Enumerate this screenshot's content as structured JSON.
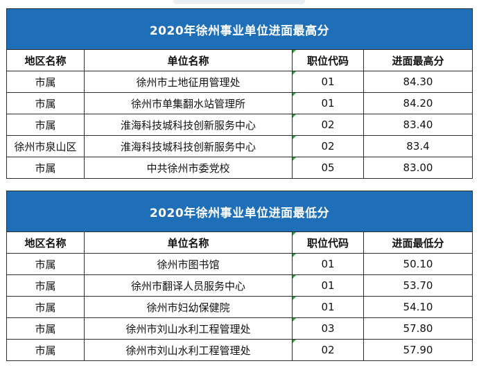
{
  "table_high": {
    "title": "2020年徐州事业单位进面最高分",
    "headers": [
      "地区名称",
      "单位名称",
      "职位代码",
      "进面最高分"
    ],
    "rows": [
      [
        "市属",
        "徐州市土地征用管理处",
        "01",
        "84.30"
      ],
      [
        "市属",
        "徐州市单集翻水站管理所",
        "01",
        "84.20"
      ],
      [
        "市属",
        "淮海科技城科技创新服务中心",
        "02",
        "83.40"
      ],
      [
        "徐州市泉山区",
        "淮海科技城科技创新服务中心",
        "02",
        "83.4"
      ],
      [
        "市属",
        "中共徐州市委党校",
        "05",
        "83.00"
      ]
    ]
  },
  "table_low": {
    "title": "2020年徐州事业单位进面最低分",
    "headers": [
      "地区名称",
      "单位名称",
      "职位代码",
      "进面最低分"
    ],
    "rows": [
      [
        "市属",
        "徐州市图书馆",
        "01",
        "50.10"
      ],
      [
        "市属",
        "徐州市翻译人员服务中心",
        "01",
        "53.70"
      ],
      [
        "市属",
        "徐州市妇幼保健院",
        "01",
        "54.10"
      ],
      [
        "市属",
        "徐州市刘山水利工程管理处",
        "03",
        "57.80"
      ],
      [
        "市属",
        "徐州市刘山水利工程管理处",
        "02",
        "57.90"
      ]
    ]
  },
  "colors": {
    "title_bg": "#1f6fb8",
    "title_text": "#ffffff",
    "border": "#2b2b2b",
    "cell_marker": "#2e9e3e"
  }
}
